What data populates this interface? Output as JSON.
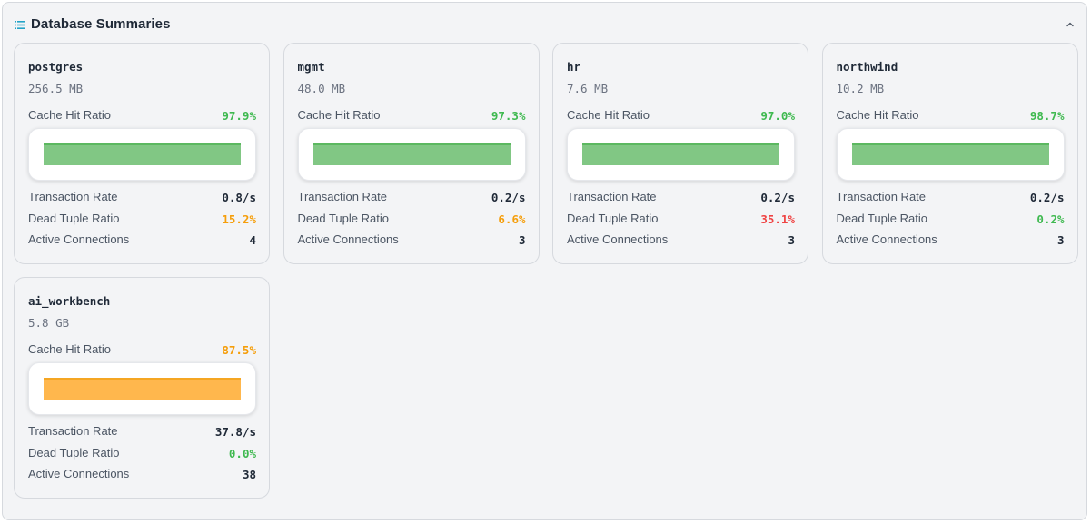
{
  "panel": {
    "title": "Database Summaries",
    "icon": "list-icon",
    "collapse_icon": "chevron-up-icon"
  },
  "labels": {
    "cache_hit_ratio": "Cache Hit Ratio",
    "transaction_rate": "Transaction Rate",
    "dead_tuple_ratio": "Dead Tuple Ratio",
    "active_connections": "Active Connections"
  },
  "colors": {
    "good": "#3fb950",
    "warn": "#f59e0b",
    "bad": "#ef4444",
    "bar_good": "#81c784",
    "bar_good_top": "#5cb860",
    "bar_warn": "#ffb74d",
    "bar_warn_top": "#f5a623"
  },
  "databases": [
    {
      "name": "postgres",
      "size": "256.5 MB",
      "cache_hit_ratio": "97.9%",
      "cache_status": "good",
      "transaction_rate": "0.8/s",
      "dead_tuple_ratio": "15.2%",
      "dead_status": "warn",
      "active_connections": "4"
    },
    {
      "name": "mgmt",
      "size": "48.0 MB",
      "cache_hit_ratio": "97.3%",
      "cache_status": "good",
      "transaction_rate": "0.2/s",
      "dead_tuple_ratio": "6.6%",
      "dead_status": "warn",
      "active_connections": "3"
    },
    {
      "name": "hr",
      "size": "7.6 MB",
      "cache_hit_ratio": "97.0%",
      "cache_status": "good",
      "transaction_rate": "0.2/s",
      "dead_tuple_ratio": "35.1%",
      "dead_status": "bad",
      "active_connections": "3"
    },
    {
      "name": "northwind",
      "size": "10.2 MB",
      "cache_hit_ratio": "98.7%",
      "cache_status": "good",
      "transaction_rate": "0.2/s",
      "dead_tuple_ratio": "0.2%",
      "dead_status": "good",
      "active_connections": "3"
    },
    {
      "name": "ai_workbench",
      "size": "5.8 GB",
      "cache_hit_ratio": "87.5%",
      "cache_status": "warn",
      "transaction_rate": "37.8/s",
      "dead_tuple_ratio": "0.0%",
      "dead_status": "good",
      "active_connections": "38"
    }
  ]
}
